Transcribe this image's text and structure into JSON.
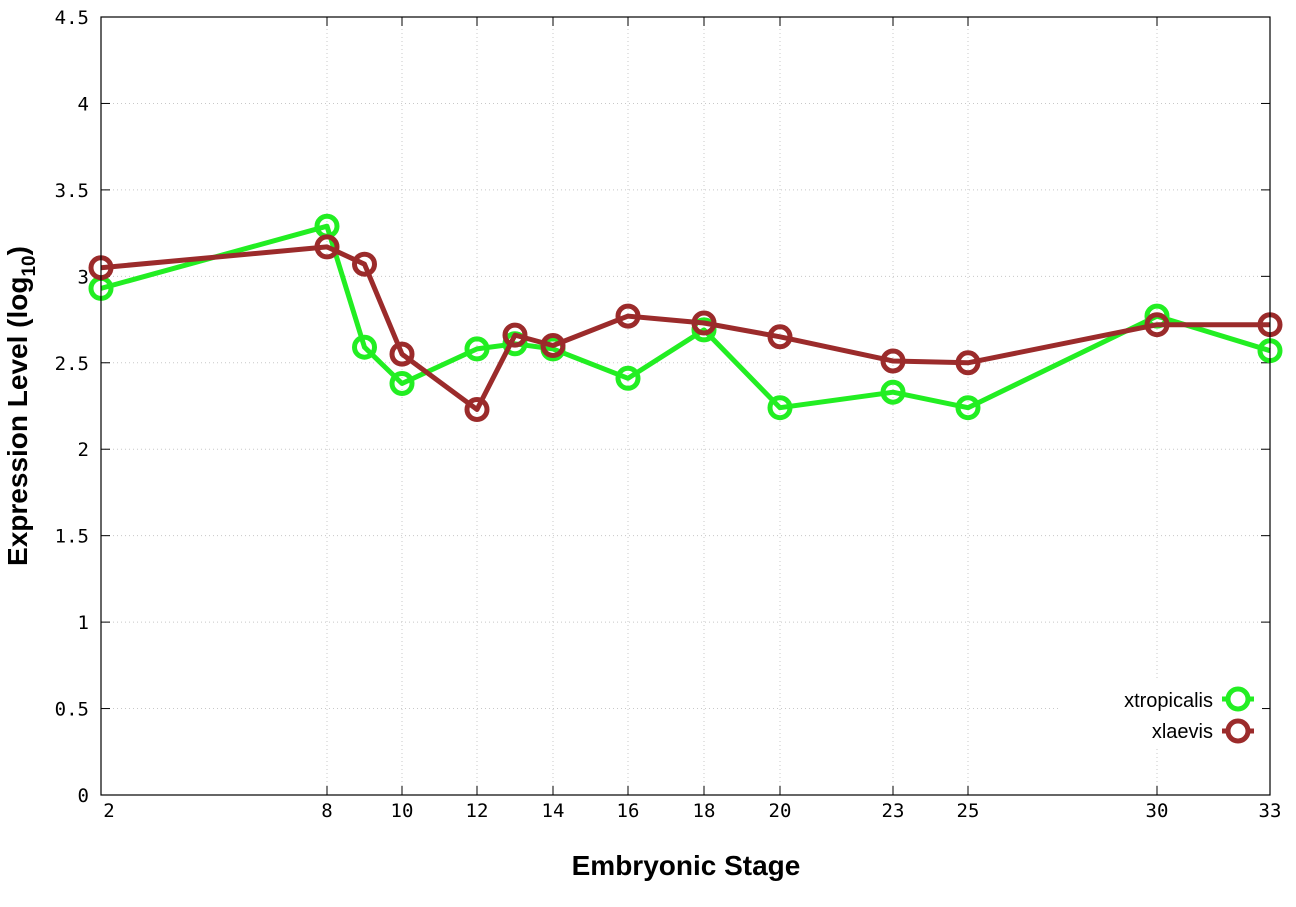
{
  "chart_data": {
    "type": "line",
    "title": "",
    "xlabel": "Embryonic Stage",
    "ylabel_main": "Expression Level (log",
    "ylabel_sub": "10",
    "ylabel_close": ")",
    "x_ticks": [
      "2",
      "8",
      "10",
      "12",
      "14",
      "16",
      "18",
      "20",
      "23",
      "25",
      "30",
      "33"
    ],
    "y_ticks": [
      "0",
      "0.5",
      "1",
      "1.5",
      "2",
      "2.5",
      "3",
      "3.5",
      "4",
      "4.5"
    ],
    "ylim": [
      0,
      4.5
    ],
    "grid": true,
    "legend_position": "bottom-right",
    "series": [
      {
        "name": "xtropicalis",
        "color": "#22ee22",
        "x": [
          "2",
          "8",
          "9",
          "10",
          "12",
          "13",
          "14",
          "16",
          "18",
          "20",
          "23",
          "25",
          "30",
          "33"
        ],
        "y": [
          2.93,
          3.29,
          2.59,
          2.38,
          2.58,
          2.61,
          2.58,
          2.41,
          2.69,
          2.24,
          2.33,
          2.24,
          2.77,
          2.57
        ]
      },
      {
        "name": "xlaevis",
        "color": "#9b2b2b",
        "x": [
          "2",
          "8",
          "9",
          "10",
          "12",
          "13",
          "14",
          "16",
          "18",
          "20",
          "23",
          "25",
          "30",
          "33"
        ],
        "y": [
          3.05,
          3.17,
          3.07,
          2.55,
          2.23,
          2.66,
          2.6,
          2.77,
          2.73,
          2.65,
          2.51,
          2.5,
          2.72,
          2.72
        ]
      }
    ]
  }
}
